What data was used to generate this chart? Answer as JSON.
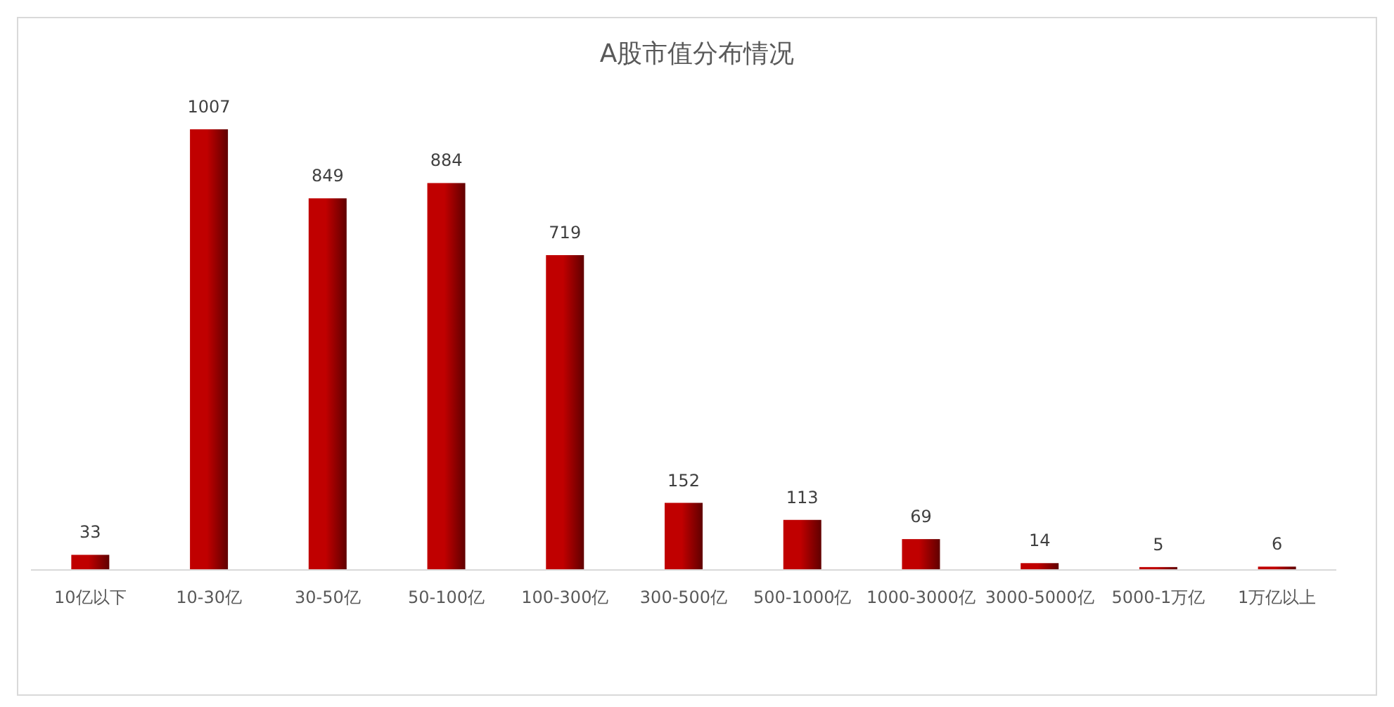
{
  "chart_data": {
    "type": "bar",
    "title": "A股市值分布情况",
    "categories": [
      "10亿以下",
      "10-30亿",
      "30-50亿",
      "50-100亿",
      "100-300亿",
      "300-500亿",
      "500-1000亿",
      "1000-3000亿",
      "3000-5000亿",
      "5000-1万亿",
      "1万亿以上"
    ],
    "values": [
      33,
      1007,
      849,
      884,
      719,
      152,
      113,
      69,
      14,
      5,
      6
    ],
    "color": "#c00000",
    "data_labels": true
  }
}
